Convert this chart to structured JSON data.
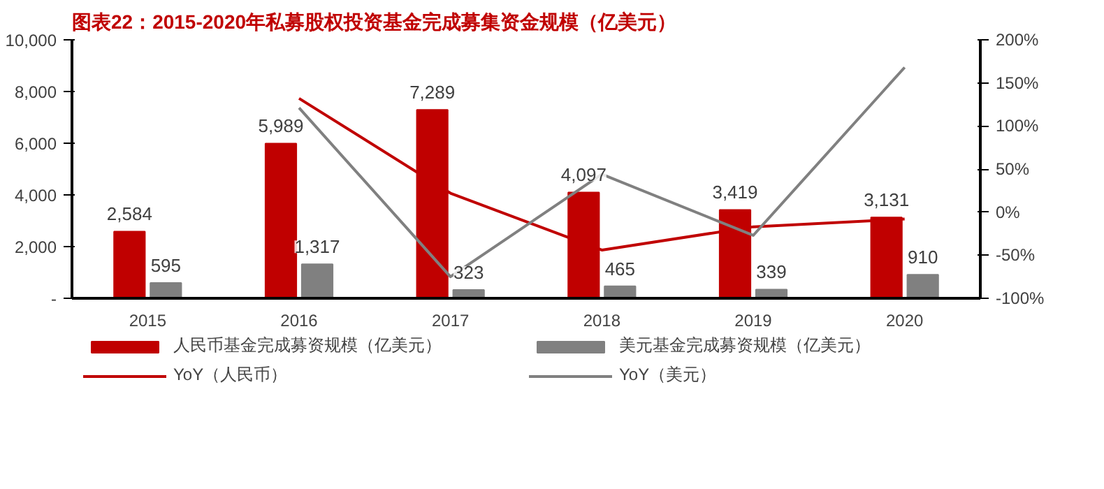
{
  "chart_data": {
    "type": "bar",
    "title": "图表22：2015-2020年私募股权投资基金完成募集资金规模（亿美元）",
    "categories": [
      "2015",
      "2016",
      "2017",
      "2018",
      "2019",
      "2020"
    ],
    "series": [
      {
        "name": "人民币基金完成募资规模（亿美元）",
        "color": "#c00000",
        "values": [
          2584,
          5989,
          7289,
          4097,
          3419,
          3131
        ],
        "value_labels": [
          "2,584",
          "5,989",
          "7,289",
          "4,097",
          "3,419",
          "3,131"
        ]
      },
      {
        "name": "美元基金完成募资规模（亿美元）",
        "color": "#808080",
        "values": [
          595,
          1317,
          323,
          465,
          339,
          910
        ],
        "value_labels": [
          "595",
          "1,317",
          "323",
          "465",
          "339",
          "910"
        ]
      },
      {
        "name": "YoY（人民币）",
        "type": "line",
        "axis": "y2",
        "color": "#c00000",
        "values": [
          null,
          132,
          22,
          -44,
          -17,
          -8
        ]
      },
      {
        "name": "YoY（美元）",
        "type": "line",
        "axis": "y2",
        "color": "#808080",
        "values": [
          null,
          121,
          -75,
          44,
          -27,
          168
        ]
      }
    ],
    "ylim": [
      0,
      10000
    ],
    "yticks": [
      {
        "value": 0,
        "label": "-"
      },
      {
        "value": 2000,
        "label": "2,000"
      },
      {
        "value": 4000,
        "label": "4,000"
      },
      {
        "value": 6000,
        "label": "6,000"
      },
      {
        "value": 8000,
        "label": "8,000"
      },
      {
        "value": 10000,
        "label": "10,000"
      }
    ],
    "y2lim": [
      -100,
      200
    ],
    "y2ticks": [
      {
        "value": -100,
        "label": "-100%"
      },
      {
        "value": -50,
        "label": "-50%"
      },
      {
        "value": 0,
        "label": "0%"
      },
      {
        "value": 50,
        "label": "50%"
      },
      {
        "value": 100,
        "label": "100%"
      },
      {
        "value": 150,
        "label": "150%"
      },
      {
        "value": 200,
        "label": "200%"
      }
    ],
    "grid": false,
    "legend": "bottom"
  }
}
